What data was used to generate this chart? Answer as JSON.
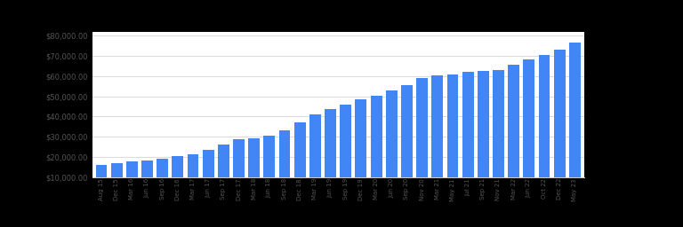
{
  "bar_color": "#4285F4",
  "plot_bg_color": "#ffffff",
  "outer_bg": "#000000",
  "ylim": [
    10000,
    82000
  ],
  "yticks": [
    10000,
    20000,
    30000,
    40000,
    50000,
    60000,
    70000,
    80000
  ],
  "categories": [
    "Aug 15",
    "Dec 15",
    "Mar 16",
    "Jun 16",
    "Sep 16",
    "Dec 16",
    "Mar 17",
    "Jun 17",
    "Sep 17",
    "Dec 17",
    "Mar 18",
    "Jun 18",
    "Sep 18",
    "Dec 18",
    "Mar 19",
    "Jun 19",
    "Sep 19",
    "Dec 19",
    "Mar 20",
    "Jun 20",
    "Sep 20",
    "Nov 20",
    "Mar 21",
    "May 21",
    "Jul 21",
    "Sep 21",
    "Nov 21",
    "Mar 22",
    "Jun 22",
    "Oct 22",
    "Dec 22",
    "May 23"
  ],
  "values": [
    15800,
    16900,
    17600,
    18100,
    19000,
    20400,
    21300,
    23400,
    26000,
    28800,
    29000,
    30500,
    33000,
    37000,
    41000,
    43500,
    46000,
    48500,
    50500,
    53000,
    55500,
    59000,
    60500,
    61000,
    62000,
    62500,
    63200,
    65500,
    68500,
    70500,
    73000,
    76500
  ],
  "title_fontsize": 8,
  "ytick_fontsize": 6,
  "xtick_fontsize": 5,
  "grid_color": "#cccccc",
  "tick_color": "#555555"
}
